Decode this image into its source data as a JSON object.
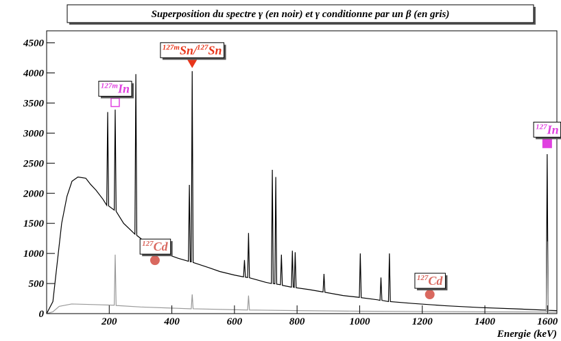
{
  "chart_data": {
    "type": "line",
    "title": "Superposition du spectre γ (en noir) et γ conditionne par un  β (en gris)",
    "x_label": "Energie (keV)",
    "xlim": [
      0,
      1630
    ],
    "ylim": [
      0,
      4700
    ],
    "xticks": [
      200,
      400,
      600,
      800,
      1000,
      1200,
      1400,
      1600
    ],
    "yticks": [
      0,
      500,
      1000,
      1500,
      2000,
      2500,
      3000,
      3500,
      4000,
      4500
    ],
    "series": [
      {
        "name": "γ",
        "color": "#000000",
        "x": [
          0,
          20,
          35,
          48,
          65,
          81,
          100,
          125,
          140,
          158,
          180,
          192,
          195,
          198,
          216,
          219,
          222,
          246,
          270,
          282,
          285,
          288,
          330,
          377,
          420,
          453,
          456,
          459,
          462,
          465,
          468,
          520,
          553,
          600,
          629,
          632,
          635,
          642,
          645,
          648,
          700,
          718,
          721,
          724,
          729,
          732,
          735,
          747,
          750,
          753,
          782,
          785,
          788,
          791,
          794,
          797,
          838,
          883,
          886,
          889,
          947,
          999,
          1002,
          1005,
          1057,
          1065,
          1068,
          1071,
          1092,
          1095,
          1098,
          1167,
          1276,
          1386,
          1496,
          1583,
          1596,
          1599,
          1602,
          1630
        ],
        "values": [
          0,
          200,
          900,
          1500,
          1950,
          2200,
          2270,
          2250,
          2150,
          2050,
          1900,
          1800,
          3350,
          1790,
          1720,
          3390,
          1700,
          1500,
          1380,
          1320,
          3980,
          1300,
          1130,
          1000,
          920,
          870,
          2140,
          860,
          860,
          4030,
          850,
          760,
          700,
          640,
          610,
          890,
          605,
          600,
          1340,
          595,
          520,
          500,
          2390,
          500,
          495,
          2270,
          490,
          480,
          980,
          470,
          440,
          1045,
          440,
          435,
          1020,
          430,
          400,
          360,
          660,
          355,
          300,
          270,
          1000,
          265,
          230,
          220,
          600,
          220,
          200,
          1000,
          200,
          170,
          130,
          100,
          80,
          60,
          58,
          2650,
          55,
          50
        ]
      },
      {
        "name": "γ conditionne par un β",
        "color": "#999999",
        "x": [
          0,
          20,
          40,
          80,
          150,
          216,
          219,
          222,
          300,
          462,
          465,
          468,
          642,
          645,
          648,
          800,
          1000,
          1200,
          1400,
          1596,
          1599,
          1602,
          1630
        ],
        "values": [
          0,
          30,
          120,
          160,
          150,
          140,
          980,
          135,
          110,
          80,
          320,
          80,
          60,
          300,
          60,
          50,
          40,
          35,
          30,
          28,
          1200,
          26,
          25
        ]
      }
    ],
    "annotations": [
      {
        "parts": [
          {
            "sup": "127m",
            "main": "In"
          }
        ],
        "x": 219,
        "y": 3510,
        "marker": "open-square",
        "color": "#e040e0"
      },
      {
        "parts": [
          {
            "sup": "127m",
            "main": "Sn/"
          },
          {
            "sup": "127",
            "main": "Sn"
          }
        ],
        "x": 465,
        "y": 4150,
        "marker": "triangle-down",
        "color": "#e8351a"
      },
      {
        "parts": [
          {
            "sup": "127",
            "main": "Cd"
          }
        ],
        "x": 346,
        "y": 886,
        "marker": "circle",
        "color": "#d9685f"
      },
      {
        "parts": [
          {
            "sup": "127",
            "main": "Cd"
          }
        ],
        "x": 1224,
        "y": 318,
        "marker": "circle",
        "color": "#d9685f"
      },
      {
        "parts": [
          {
            "sup": "127",
            "main": "In"
          }
        ],
        "x": 1599,
        "y": 2830,
        "marker": "square",
        "color": "#e040e0"
      }
    ]
  }
}
